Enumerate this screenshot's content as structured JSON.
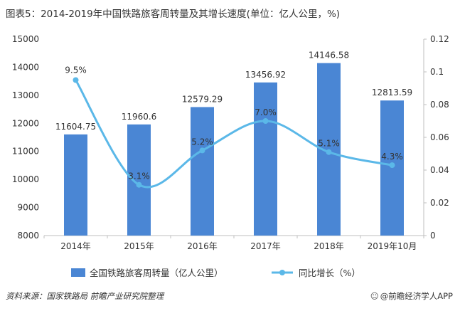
{
  "title": "图表5：2014-2019年中国铁路旅客周转量及其增长速度(单位：亿人公里，%)",
  "footer": {
    "source": "资料来源：国家铁路局 前瞻产业研究院整理",
    "brand_icon": "wechat-icon",
    "brand": "@前瞻经济学人APP"
  },
  "colors": {
    "bar": "#4a86d4",
    "line": "#5bb8e8",
    "grid": "#d9d9d9",
    "text": "#333333"
  },
  "chart_data": {
    "type": "bar",
    "categories": [
      "2014年",
      "2015年",
      "2016年",
      "2017年",
      "2018年",
      "2019年10月"
    ],
    "series": [
      {
        "name": "全国铁路旅客周转量（亿人公里）",
        "type": "bar",
        "axis": "left",
        "values": [
          11604.75,
          11960.6,
          12579.29,
          13456.92,
          14146.58,
          12813.59
        ],
        "labels": [
          "11604.75",
          "11960.6",
          "12579.29",
          "13456.92",
          "14146.58",
          "12813.59"
        ]
      },
      {
        "name": "同比增长（%）",
        "type": "line",
        "smooth": true,
        "axis": "right",
        "values": [
          0.095,
          0.031,
          0.052,
          0.07,
          0.051,
          0.043
        ],
        "labels": [
          "9.5%",
          "3.1%",
          "5.2%",
          "7.0%",
          "5.1%",
          "4.3%"
        ]
      }
    ],
    "y_left": {
      "lim": [
        8000,
        15000
      ],
      "ticks": [
        "8000",
        "9000",
        "10000",
        "11000",
        "12000",
        "13000",
        "14000",
        "15000"
      ]
    },
    "y_right": {
      "lim": [
        0,
        0.12
      ],
      "ticks": [
        "0",
        "0.02",
        "0.04",
        "0.06",
        "0.08",
        "0.1",
        "0.12"
      ]
    },
    "grid": false,
    "legend": "bottom"
  }
}
